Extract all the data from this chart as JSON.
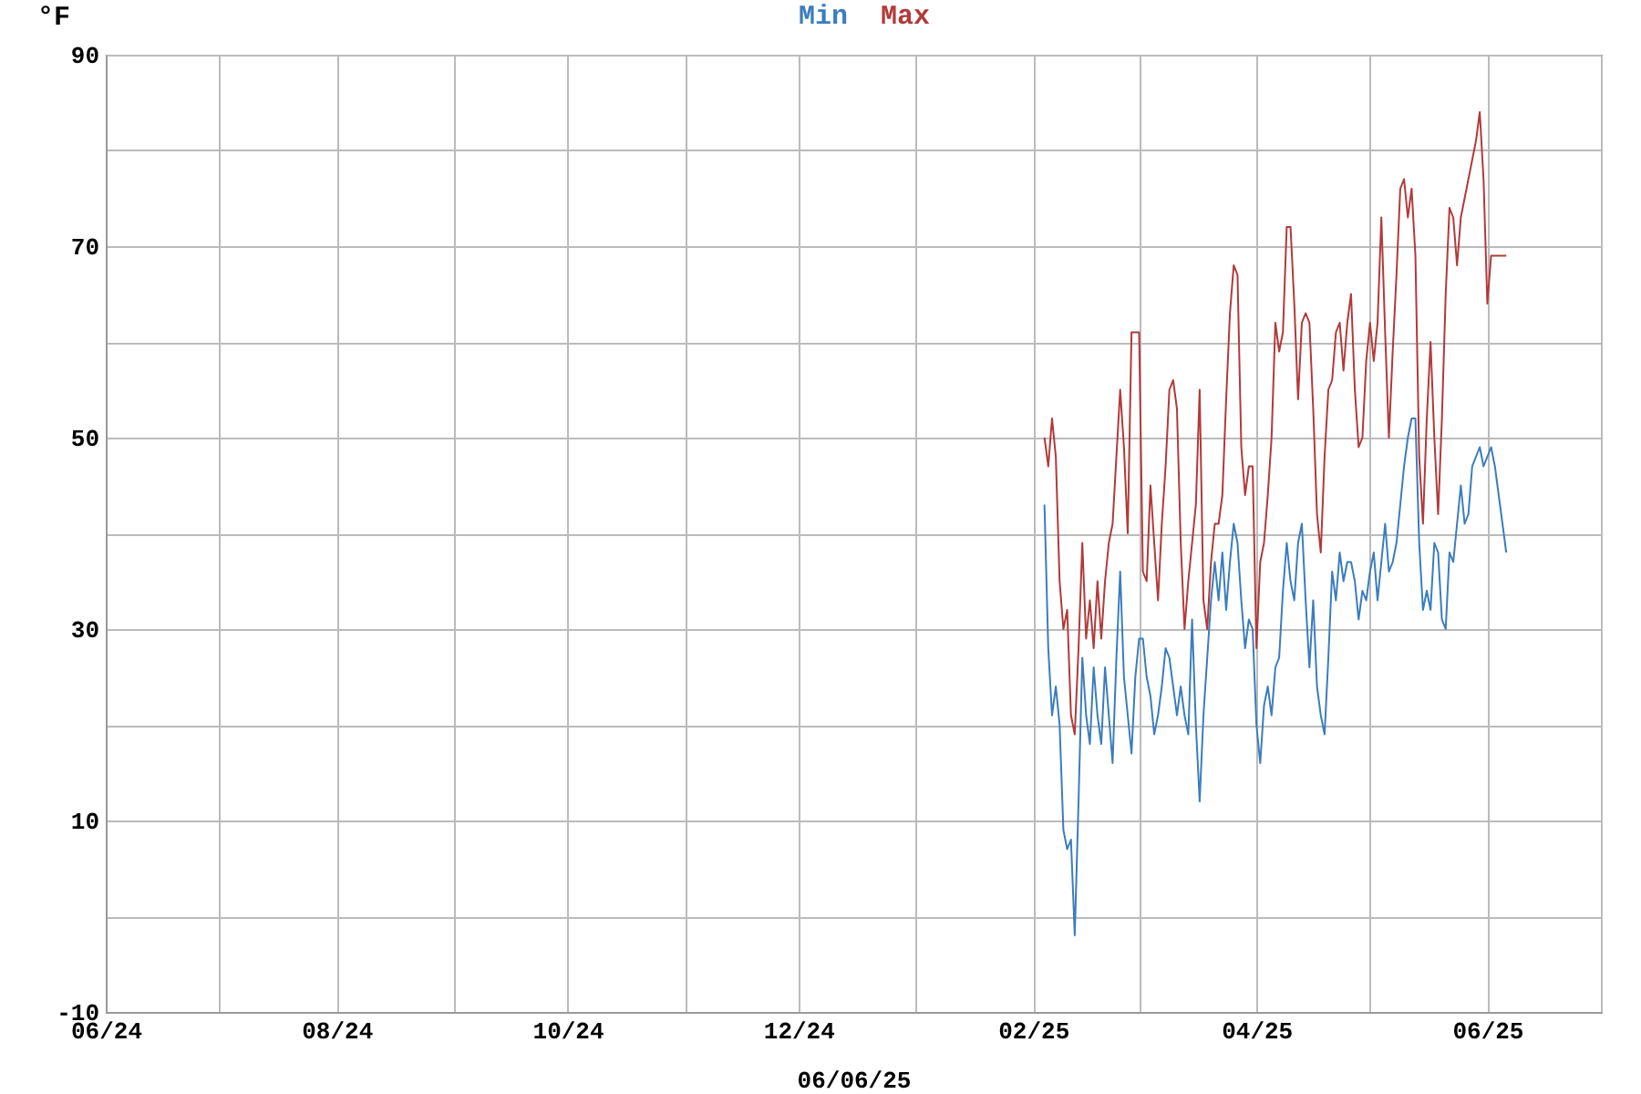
{
  "chart_data": {
    "type": "line",
    "ylabel": "°F",
    "xlabel": "06/06/25",
    "legend": "top",
    "grid": true,
    "line_style": "solid",
    "marker": "none",
    "xlim": [
      "2024-06-01",
      "2025-07-01"
    ],
    "xticks": [
      {
        "value": "2024-06-01",
        "label": "06/24"
      },
      {
        "value": "2024-07-01",
        "label": null
      },
      {
        "value": "2024-08-01",
        "label": "08/24"
      },
      {
        "value": "2024-09-01",
        "label": null
      },
      {
        "value": "2024-10-01",
        "label": "10/24"
      },
      {
        "value": "2024-11-01",
        "label": null
      },
      {
        "value": "2024-12-01",
        "label": "12/24"
      },
      {
        "value": "2025-01-01",
        "label": null
      },
      {
        "value": "2025-02-01",
        "label": "02/25"
      },
      {
        "value": "2025-03-01",
        "label": null
      },
      {
        "value": "2025-04-01",
        "label": "04/25"
      },
      {
        "value": "2025-05-01",
        "label": null
      },
      {
        "value": "2025-06-01",
        "label": "06/25"
      },
      {
        "value": "2025-07-01",
        "label": null
      }
    ],
    "ylim": [
      -10,
      90
    ],
    "yticks": [
      -10,
      {
        "value": 0,
        "label": null
      },
      10,
      {
        "value": 20,
        "label": null
      },
      30,
      {
        "value": 40,
        "label": null
      },
      50,
      {
        "value": 60,
        "label": null
      },
      70,
      {
        "value": 80,
        "label": null
      },
      90
    ],
    "series": [
      {
        "name": "Min",
        "color": "#3b7dbd",
        "x": [
          "2025-02-04",
          "2025-02-05",
          "2025-02-06",
          "2025-02-07",
          "2025-02-08",
          "2025-02-09",
          "2025-02-10",
          "2025-02-11",
          "2025-02-12",
          "2025-02-13",
          "2025-02-14",
          "2025-02-15",
          "2025-02-16",
          "2025-02-17",
          "2025-02-18",
          "2025-02-19",
          "2025-02-20",
          "2025-02-21",
          "2025-02-22",
          "2025-02-23",
          "2025-02-24",
          "2025-02-25",
          "2025-02-26",
          "2025-02-27",
          "2025-02-28",
          "2025-03-01",
          "2025-03-02",
          "2025-03-03",
          "2025-03-04",
          "2025-03-05",
          "2025-03-06",
          "2025-03-07",
          "2025-03-08",
          "2025-03-09",
          "2025-03-10",
          "2025-03-11",
          "2025-03-12",
          "2025-03-13",
          "2025-03-14",
          "2025-03-15",
          "2025-03-16",
          "2025-03-17",
          "2025-03-18",
          "2025-03-19",
          "2025-03-20",
          "2025-03-21",
          "2025-03-22",
          "2025-03-23",
          "2025-03-24",
          "2025-03-25",
          "2025-03-26",
          "2025-03-27",
          "2025-03-28",
          "2025-03-29",
          "2025-03-30",
          "2025-03-31",
          "2025-04-01",
          "2025-04-02",
          "2025-04-03",
          "2025-04-04",
          "2025-04-05",
          "2025-04-06",
          "2025-04-07",
          "2025-04-08",
          "2025-04-09",
          "2025-04-10",
          "2025-04-11",
          "2025-04-12",
          "2025-04-13",
          "2025-04-14",
          "2025-04-15",
          "2025-04-16",
          "2025-04-17",
          "2025-04-18",
          "2025-04-19",
          "2025-04-20",
          "2025-04-21",
          "2025-04-22",
          "2025-04-23",
          "2025-04-24",
          "2025-04-25",
          "2025-04-26",
          "2025-04-27",
          "2025-04-28",
          "2025-04-29",
          "2025-04-30",
          "2025-05-01",
          "2025-05-02",
          "2025-05-03",
          "2025-05-04",
          "2025-05-05",
          "2025-05-06",
          "2025-05-07",
          "2025-05-08",
          "2025-05-09",
          "2025-05-10",
          "2025-05-11",
          "2025-05-12",
          "2025-05-13",
          "2025-05-14",
          "2025-05-15",
          "2025-05-16",
          "2025-05-17",
          "2025-05-18",
          "2025-05-19",
          "2025-05-20",
          "2025-05-21",
          "2025-05-22",
          "2025-05-23",
          "2025-05-24",
          "2025-05-25",
          "2025-05-26",
          "2025-05-27",
          "2025-05-28",
          "2025-05-29",
          "2025-05-30",
          "2025-05-31",
          "2025-06-01",
          "2025-06-02",
          "2025-06-03",
          "2025-06-04",
          "2025-06-05",
          "2025-06-06"
        ],
        "values": [
          43,
          28,
          21,
          24,
          20,
          9,
          7,
          8,
          -2,
          12,
          27,
          21,
          18,
          26,
          21,
          18,
          26,
          21,
          16,
          27,
          36,
          25,
          21,
          17,
          25,
          29,
          29,
          25,
          23,
          19,
          21,
          24,
          28,
          27,
          24,
          21,
          24,
          21,
          19,
          31,
          20,
          12,
          21,
          27,
          33,
          37,
          33,
          38,
          32,
          37,
          41,
          39,
          33,
          28,
          31,
          30,
          20,
          16,
          22,
          24,
          21,
          26,
          27,
          34,
          39,
          35,
          33,
          39,
          41,
          33,
          26,
          33,
          24,
          21,
          19,
          27,
          36,
          33,
          38,
          35,
          37,
          37,
          35,
          31,
          34,
          33,
          36,
          38,
          33,
          37,
          41,
          36,
          37,
          39,
          43,
          47,
          50,
          52,
          52,
          39,
          32,
          34,
          32,
          39,
          38,
          31,
          30,
          38,
          37,
          41,
          45,
          41,
          42,
          47,
          48,
          49,
          47,
          48,
          49,
          47,
          44,
          41,
          38
        ]
      },
      {
        "name": "Max",
        "color": "#b23a3a",
        "x": [
          "2025-02-04",
          "2025-02-05",
          "2025-02-06",
          "2025-02-07",
          "2025-02-08",
          "2025-02-09",
          "2025-02-10",
          "2025-02-11",
          "2025-02-12",
          "2025-02-13",
          "2025-02-14",
          "2025-02-15",
          "2025-02-16",
          "2025-02-17",
          "2025-02-18",
          "2025-02-19",
          "2025-02-20",
          "2025-02-21",
          "2025-02-22",
          "2025-02-23",
          "2025-02-24",
          "2025-02-25",
          "2025-02-26",
          "2025-02-27",
          "2025-02-28",
          "2025-03-01",
          "2025-03-02",
          "2025-03-03",
          "2025-03-04",
          "2025-03-05",
          "2025-03-06",
          "2025-03-07",
          "2025-03-08",
          "2025-03-09",
          "2025-03-10",
          "2025-03-11",
          "2025-03-12",
          "2025-03-13",
          "2025-03-14",
          "2025-03-15",
          "2025-03-16",
          "2025-03-17",
          "2025-03-18",
          "2025-03-19",
          "2025-03-20",
          "2025-03-21",
          "2025-03-22",
          "2025-03-23",
          "2025-03-24",
          "2025-03-25",
          "2025-03-26",
          "2025-03-27",
          "2025-03-28",
          "2025-03-29",
          "2025-03-30",
          "2025-03-31",
          "2025-04-01",
          "2025-04-02",
          "2025-04-03",
          "2025-04-04",
          "2025-04-05",
          "2025-04-06",
          "2025-04-07",
          "2025-04-08",
          "2025-04-09",
          "2025-04-10",
          "2025-04-11",
          "2025-04-12",
          "2025-04-13",
          "2025-04-14",
          "2025-04-15",
          "2025-04-16",
          "2025-04-17",
          "2025-04-18",
          "2025-04-19",
          "2025-04-20",
          "2025-04-21",
          "2025-04-22",
          "2025-04-23",
          "2025-04-24",
          "2025-04-25",
          "2025-04-26",
          "2025-04-27",
          "2025-04-28",
          "2025-04-29",
          "2025-04-30",
          "2025-05-01",
          "2025-05-02",
          "2025-05-03",
          "2025-05-04",
          "2025-05-05",
          "2025-05-06",
          "2025-05-07",
          "2025-05-08",
          "2025-05-09",
          "2025-05-10",
          "2025-05-11",
          "2025-05-12",
          "2025-05-13",
          "2025-05-14",
          "2025-05-15",
          "2025-05-16",
          "2025-05-17",
          "2025-05-18",
          "2025-05-19",
          "2025-05-20",
          "2025-05-21",
          "2025-05-22",
          "2025-05-23",
          "2025-05-24",
          "2025-05-25",
          "2025-05-26",
          "2025-05-27",
          "2025-05-28",
          "2025-05-29",
          "2025-05-30",
          "2025-05-31",
          "2025-06-01",
          "2025-06-02",
          "2025-06-06"
        ],
        "values": [
          50,
          47,
          52,
          48,
          35,
          30,
          32,
          21,
          19,
          28,
          39,
          29,
          33,
          28,
          35,
          29,
          35,
          39,
          41,
          48,
          55,
          49,
          40,
          61,
          61,
          61,
          36,
          35,
          45,
          39,
          33,
          41,
          47,
          55,
          56,
          53,
          39,
          30,
          35,
          39,
          43,
          55,
          33,
          30,
          37,
          41,
          41,
          44,
          54,
          63,
          68,
          67,
          49,
          44,
          47,
          47,
          28,
          37,
          39,
          44,
          50,
          62,
          59,
          61,
          72,
          72,
          64,
          54,
          62,
          63,
          62,
          53,
          42,
          38,
          48,
          55,
          56,
          61,
          62,
          57,
          62,
          65,
          55,
          49,
          50,
          58,
          62,
          58,
          62,
          73,
          61,
          50,
          59,
          67,
          76,
          77,
          73,
          76,
          69,
          48,
          41,
          52,
          60,
          50,
          42,
          52,
          65,
          74,
          73,
          68,
          73,
          75,
          77,
          79,
          81,
          84,
          77,
          64,
          69,
          69
        ]
      }
    ]
  }
}
